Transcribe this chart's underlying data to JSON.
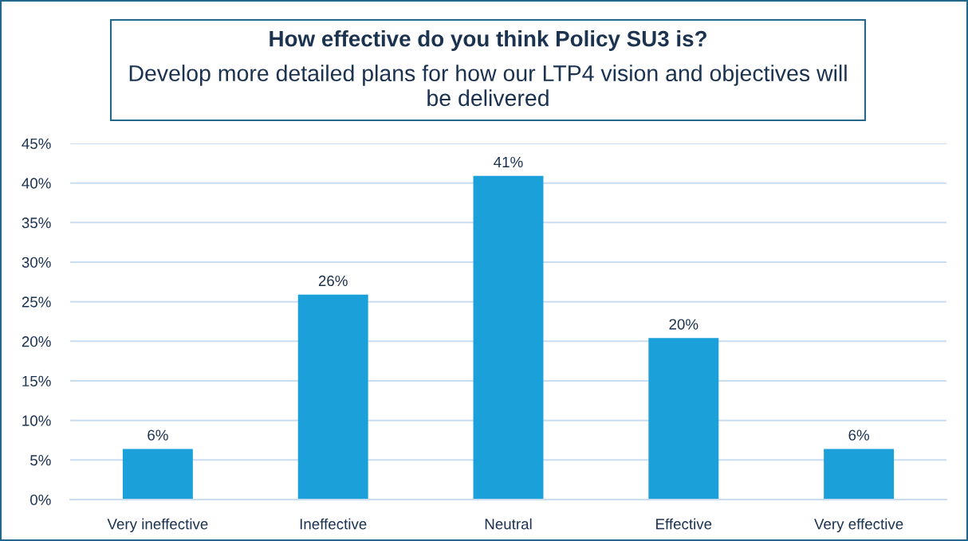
{
  "chart_data": {
    "type": "bar",
    "title": "How effective do you think Policy SU3 is?",
    "subtitle": "Develop more detailed plans for how our LTP4 vision and objectives will be delivered",
    "categories": [
      "Very ineffective",
      "Ineffective",
      "Neutral",
      "Effective",
      "Very effective"
    ],
    "values": [
      6.4,
      25.9,
      40.9,
      20.4,
      6.4
    ],
    "value_labels": [
      "6%",
      "26%",
      "41%",
      "20%",
      "6%"
    ],
    "color": "#1ca0d9",
    "ylim": [
      0,
      45
    ],
    "yticks": [
      {
        "value": 0,
        "label": "0%"
      },
      {
        "value": 5,
        "label": "5%"
      },
      {
        "value": 10,
        "label": "10%"
      },
      {
        "value": 15,
        "label": "15%"
      },
      {
        "value": 20,
        "label": "20%"
      },
      {
        "value": 25,
        "label": "25%"
      },
      {
        "value": 30,
        "label": "30%"
      },
      {
        "value": 35,
        "label": "35%"
      },
      {
        "value": 40,
        "label": "40%"
      },
      {
        "value": 45,
        "label": "45%"
      }
    ],
    "grid": "y"
  }
}
